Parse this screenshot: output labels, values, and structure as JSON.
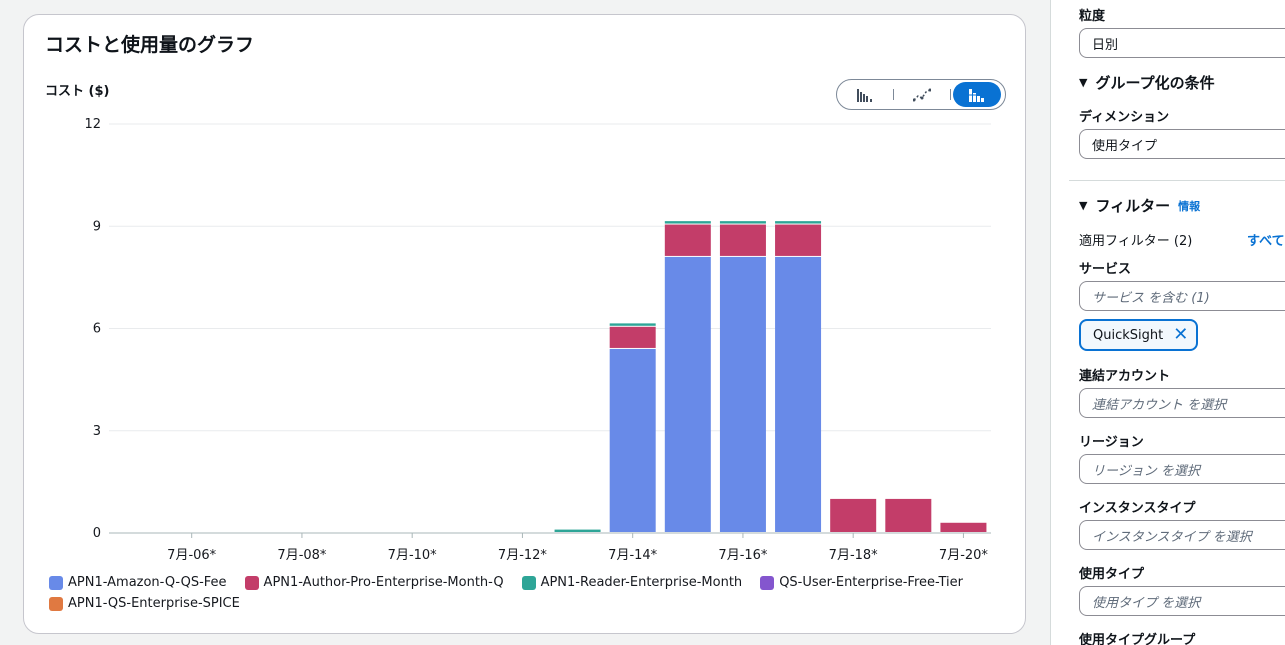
{
  "chart_card": {
    "title": "コストと使用量のグラフ",
    "y_axis_title": "コスト ($)",
    "view_toggle": [
      "bar-chart-icon",
      "line-chart-icon",
      "stacked-bar-chart-icon"
    ]
  },
  "chart_data": {
    "type": "bar",
    "stacked": true,
    "x": [
      "7月-05*",
      "7月-06*",
      "7月-07*",
      "7月-08*",
      "7月-09*",
      "7月-10*",
      "7月-11*",
      "7月-12*",
      "7月-13*",
      "7月-14*",
      "7月-15*",
      "7月-16*",
      "7月-17*",
      "7月-18*",
      "7月-19*",
      "7月-20*"
    ],
    "x_tick_labels": [
      "7月-06*",
      "7月-08*",
      "7月-10*",
      "7月-12*",
      "7月-14*",
      "7月-16*",
      "7月-18*",
      "7月-20*"
    ],
    "y_ticks": [
      "0",
      "3",
      "6",
      "9",
      "12"
    ],
    "ylim": [
      0,
      12
    ],
    "grid": true,
    "legend_position": "bottom",
    "series": [
      {
        "name": "APN1-Amazon-Q-QS-Fee",
        "color": "#688ae8",
        "values": [
          0,
          0,
          0,
          0,
          0,
          0,
          0,
          0,
          0,
          5.4,
          8.1,
          8.1,
          8.1,
          0,
          0,
          0
        ]
      },
      {
        "name": "APN1-Author-Pro-Enterprise-Month-Q",
        "color": "#c33d69",
        "values": [
          0,
          0,
          0,
          0,
          0,
          0,
          0,
          0,
          0,
          0.65,
          0.95,
          0.95,
          0.95,
          1.0,
          1.0,
          0.3
        ]
      },
      {
        "name": "APN1-Reader-Enterprise-Month",
        "color": "#2ea597",
        "values": [
          0,
          0,
          0,
          0,
          0,
          0,
          0,
          0,
          0.1,
          0.1,
          0.1,
          0.1,
          0.1,
          0,
          0,
          0
        ]
      },
      {
        "name": "QS-User-Enterprise-Free-Tier",
        "color": "#8456ce",
        "values": [
          0,
          0,
          0,
          0,
          0,
          0,
          0,
          0,
          0,
          0,
          0,
          0,
          0,
          0,
          0,
          0
        ]
      },
      {
        "name": "APN1-QS-Enterprise-SPICE",
        "color": "#e07941",
        "values": [
          0,
          0,
          0,
          0,
          0,
          0,
          0,
          0,
          0,
          0,
          0,
          0,
          0,
          0,
          0,
          0
        ]
      }
    ]
  },
  "panel": {
    "granularity_label": "粒度",
    "granularity_value": "日別",
    "group_section_title": "グループ化の条件",
    "dimension_label": "ディメンション",
    "dimension_value": "使用タイプ",
    "filter_section_title": "フィルター",
    "filter_info_link": "情報",
    "applied_filters_text": "適用フィルター (2)",
    "clear_all_link": "すべて",
    "service_label": "サービス",
    "service_value": "サービス を含む (1)",
    "service_token": "QuickSight",
    "linked_account_label": "連結アカウント",
    "linked_account_placeholder": "連結アカウント を選択",
    "region_label": "リージョン",
    "region_placeholder": "リージョン を選択",
    "instance_type_label": "インスタンスタイプ",
    "instance_type_placeholder": "インスタンスタイプ を選択",
    "usage_type_label": "使用タイプ",
    "usage_type_placeholder": "使用タイプ を選択",
    "usage_type_group_label": "使用タイプグループ"
  }
}
